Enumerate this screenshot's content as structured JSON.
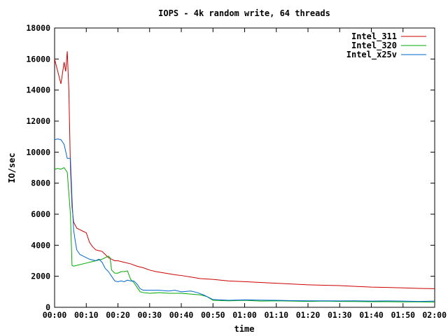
{
  "chart_data": {
    "type": "line",
    "title": "IOPS - 4k random write, 64 threads",
    "xlabel": "time",
    "ylabel": "IO/sec",
    "xlim": [
      0,
      120
    ],
    "ylim": [
      0,
      18000
    ],
    "x_ticks": [
      {
        "value": 0,
        "label": "00:00"
      },
      {
        "value": 10,
        "label": "00:10"
      },
      {
        "value": 20,
        "label": "00:20"
      },
      {
        "value": 30,
        "label": "00:30"
      },
      {
        "value": 40,
        "label": "00:40"
      },
      {
        "value": 50,
        "label": "00:50"
      },
      {
        "value": 60,
        "label": "01:00"
      },
      {
        "value": 70,
        "label": "01:10"
      },
      {
        "value": 80,
        "label": "01:20"
      },
      {
        "value": 90,
        "label": "01:30"
      },
      {
        "value": 100,
        "label": "01:40"
      },
      {
        "value": 110,
        "label": "01:50"
      },
      {
        "value": 120,
        "label": "02:00"
      }
    ],
    "y_ticks": [
      0,
      2000,
      4000,
      6000,
      8000,
      10000,
      12000,
      14000,
      16000,
      18000
    ],
    "grid": false,
    "legend": "top-right",
    "series": [
      {
        "name": "Intel_311",
        "color": "#cc0000",
        "points": [
          [
            0,
            16000
          ],
          [
            1,
            15200
          ],
          [
            2,
            14400
          ],
          [
            3,
            15800
          ],
          [
            3.5,
            15200
          ],
          [
            4,
            16500
          ],
          [
            4.5,
            14000
          ],
          [
            5,
            9000
          ],
          [
            5.5,
            6500
          ],
          [
            6,
            5500
          ],
          [
            7,
            5100
          ],
          [
            8,
            5000
          ],
          [
            9,
            4900
          ],
          [
            10,
            4800
          ],
          [
            11,
            4200
          ],
          [
            12,
            3900
          ],
          [
            13,
            3700
          ],
          [
            14,
            3650
          ],
          [
            15,
            3600
          ],
          [
            16,
            3400
          ],
          [
            17,
            3200
          ],
          [
            18,
            3100
          ],
          [
            19,
            3000
          ],
          [
            20,
            3000
          ],
          [
            22,
            2900
          ],
          [
            24,
            2800
          ],
          [
            26,
            2650
          ],
          [
            28,
            2550
          ],
          [
            30,
            2400
          ],
          [
            32,
            2300
          ],
          [
            35,
            2200
          ],
          [
            38,
            2100
          ],
          [
            40,
            2050
          ],
          [
            43,
            1950
          ],
          [
            46,
            1850
          ],
          [
            50,
            1800
          ],
          [
            55,
            1700
          ],
          [
            60,
            1650
          ],
          [
            65,
            1600
          ],
          [
            70,
            1550
          ],
          [
            75,
            1500
          ],
          [
            80,
            1450
          ],
          [
            85,
            1420
          ],
          [
            90,
            1400
          ],
          [
            95,
            1350
          ],
          [
            100,
            1300
          ],
          [
            105,
            1280
          ],
          [
            110,
            1250
          ],
          [
            115,
            1220
          ],
          [
            120,
            1200
          ]
        ]
      },
      {
        "name": "Intel_320",
        "color": "#00aa00",
        "points": [
          [
            0,
            8900
          ],
          [
            1,
            8950
          ],
          [
            2,
            8900
          ],
          [
            3,
            9000
          ],
          [
            4,
            8700
          ],
          [
            5,
            6000
          ],
          [
            5.5,
            2700
          ],
          [
            6,
            2650
          ],
          [
            8,
            2750
          ],
          [
            10,
            2850
          ],
          [
            12,
            2950
          ],
          [
            14,
            3050
          ],
          [
            15,
            3100
          ],
          [
            16,
            3200
          ],
          [
            17,
            3300
          ],
          [
            17.5,
            3200
          ],
          [
            18,
            2400
          ],
          [
            19,
            2200
          ],
          [
            20,
            2200
          ],
          [
            21,
            2300
          ],
          [
            22,
            2300
          ],
          [
            23,
            2350
          ],
          [
            24,
            1800
          ],
          [
            25,
            1600
          ],
          [
            26,
            1300
          ],
          [
            27,
            1000
          ],
          [
            28,
            950
          ],
          [
            30,
            900
          ],
          [
            33,
            950
          ],
          [
            36,
            900
          ],
          [
            40,
            900
          ],
          [
            43,
            850
          ],
          [
            46,
            800
          ],
          [
            48,
            700
          ],
          [
            50,
            450
          ],
          [
            55,
            420
          ],
          [
            60,
            450
          ],
          [
            65,
            400
          ],
          [
            70,
            420
          ],
          [
            75,
            400
          ],
          [
            80,
            380
          ],
          [
            85,
            400
          ],
          [
            90,
            380
          ],
          [
            95,
            370
          ],
          [
            100,
            360
          ],
          [
            105,
            360
          ],
          [
            110,
            350
          ],
          [
            115,
            350
          ],
          [
            120,
            340
          ]
        ]
      },
      {
        "name": "Intel_x25v",
        "color": "#0066cc",
        "points": [
          [
            0,
            10800
          ],
          [
            1,
            10850
          ],
          [
            2,
            10800
          ],
          [
            3,
            10500
          ],
          [
            4,
            9600
          ],
          [
            5,
            9600
          ],
          [
            5.5,
            7000
          ],
          [
            6,
            5000
          ],
          [
            6.5,
            4300
          ],
          [
            7,
            3700
          ],
          [
            8,
            3400
          ],
          [
            9,
            3300
          ],
          [
            10,
            3200
          ],
          [
            11,
            3100
          ],
          [
            12,
            3050
          ],
          [
            13,
            3000
          ],
          [
            14,
            3100
          ],
          [
            15,
            2900
          ],
          [
            16,
            2500
          ],
          [
            17,
            2300
          ],
          [
            18,
            2000
          ],
          [
            19,
            1700
          ],
          [
            20,
            1650
          ],
          [
            21,
            1700
          ],
          [
            22,
            1650
          ],
          [
            23,
            1750
          ],
          [
            24,
            1700
          ],
          [
            25,
            1700
          ],
          [
            26,
            1500
          ],
          [
            27,
            1200
          ],
          [
            28,
            1100
          ],
          [
            30,
            1100
          ],
          [
            33,
            1100
          ],
          [
            36,
            1050
          ],
          [
            38,
            1100
          ],
          [
            40,
            1000
          ],
          [
            43,
            1050
          ],
          [
            45,
            950
          ],
          [
            47,
            800
          ],
          [
            48,
            700
          ],
          [
            50,
            500
          ],
          [
            55,
            450
          ],
          [
            60,
            480
          ],
          [
            65,
            460
          ],
          [
            70,
            450
          ],
          [
            75,
            430
          ],
          [
            80,
            420
          ],
          [
            85,
            420
          ],
          [
            90,
            410
          ],
          [
            95,
            420
          ],
          [
            100,
            400
          ],
          [
            105,
            410
          ],
          [
            110,
            400
          ],
          [
            115,
            380
          ],
          [
            120,
            400
          ]
        ]
      }
    ]
  }
}
